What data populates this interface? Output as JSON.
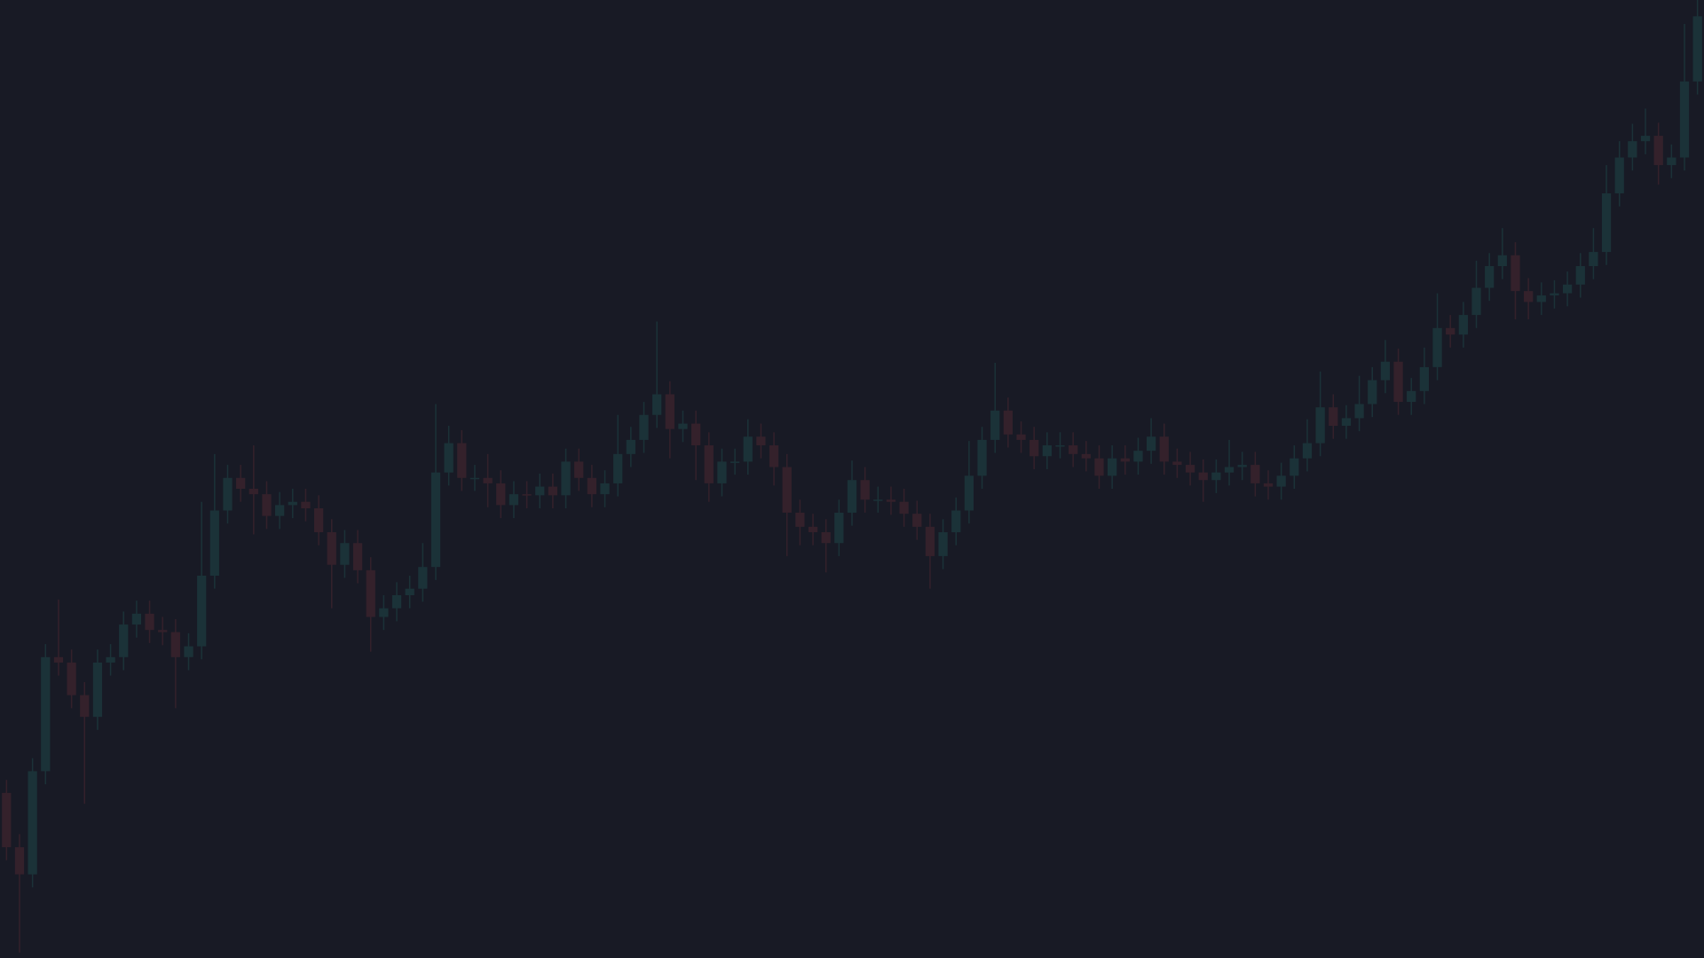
{
  "chart_data": {
    "type": "candlestick",
    "background": "#181a25",
    "up_color": "#1b3238",
    "down_color": "#34212b",
    "ylim": [
      0,
      882
    ],
    "open": [
      152,
      102,
      77,
      172,
      277,
      272,
      242,
      222,
      272,
      277,
      307,
      317,
      302,
      300,
      277,
      287,
      352,
      412,
      442,
      432,
      427,
      407,
      417,
      420,
      414,
      392,
      362,
      382,
      357,
      314,
      322,
      334,
      340,
      360,
      447,
      474,
      442,
      442,
      437,
      417,
      427,
      426,
      434,
      426,
      457,
      442,
      427,
      437,
      464,
      477,
      500,
      519,
      487,
      492,
      472,
      437,
      457,
      457,
      480,
      472,
      452,
      410,
      397,
      392,
      382,
      410,
      440,
      422,
      422,
      420,
      409,
      397,
      370,
      392,
      412,
      444,
      477,
      504,
      482,
      477,
      462,
      472,
      472,
      464,
      460,
      444,
      460,
      457,
      467,
      480,
      457,
      454,
      447,
      440,
      447,
      452,
      454,
      437,
      434,
      444,
      460,
      474,
      507,
      490,
      497,
      510,
      532,
      549,
      512,
      522,
      544,
      580,
      574,
      592,
      617,
      637,
      647,
      614,
      604,
      610,
      612,
      620,
      637,
      650,
      704,
      737,
      752,
      757,
      730,
      737,
      807
    ],
    "high": [
      164,
      114,
      184,
      289,
      330,
      284,
      254,
      284,
      289,
      319,
      329,
      329,
      314,
      312,
      299,
      420,
      464,
      454,
      454,
      472,
      439,
      429,
      432,
      432,
      426,
      404,
      394,
      394,
      369,
      334,
      346,
      352,
      382,
      510,
      490,
      486,
      454,
      464,
      449,
      439,
      439,
      446,
      446,
      469,
      469,
      454,
      449,
      500,
      489,
      512,
      586,
      531,
      504,
      504,
      484,
      469,
      469,
      496,
      492,
      484,
      464,
      422,
      409,
      404,
      422,
      458,
      452,
      434,
      434,
      432,
      421,
      409,
      404,
      424,
      476,
      489,
      548,
      516,
      494,
      489,
      484,
      484,
      484,
      476,
      472,
      472,
      472,
      479,
      497,
      492,
      469,
      466,
      459,
      459,
      477,
      466,
      466,
      449,
      456,
      472,
      496,
      540,
      519,
      509,
      536,
      544,
      569,
      561,
      534,
      562,
      612,
      592,
      604,
      642,
      649,
      672,
      659,
      626,
      622,
      624,
      632,
      649,
      672,
      730,
      752,
      768,
      782,
      769,
      749,
      860,
      882
    ],
    "low": [
      90,
      5,
      65,
      160,
      260,
      230,
      142,
      210,
      260,
      265,
      295,
      290,
      288,
      230,
      265,
      275,
      340,
      400,
      420,
      390,
      395,
      395,
      405,
      402,
      380,
      322,
      350,
      345,
      282,
      302,
      310,
      322,
      328,
      348,
      435,
      430,
      430,
      415,
      405,
      405,
      414,
      414,
      414,
      414,
      430,
      415,
      415,
      425,
      452,
      465,
      488,
      460,
      475,
      440,
      420,
      425,
      445,
      445,
      460,
      435,
      370,
      380,
      380,
      355,
      370,
      398,
      410,
      410,
      408,
      397,
      385,
      340,
      358,
      380,
      400,
      432,
      465,
      470,
      465,
      450,
      450,
      460,
      452,
      448,
      432,
      432,
      445,
      445,
      455,
      445,
      442,
      435,
      420,
      428,
      435,
      440,
      425,
      422,
      422,
      432,
      448,
      462,
      478,
      478,
      485,
      498,
      520,
      500,
      500,
      510,
      532,
      562,
      562,
      580,
      605,
      625,
      588,
      588,
      592,
      598,
      600,
      608,
      625,
      638,
      692,
      725,
      740,
      712,
      718,
      725,
      795
    ],
    "close": [
      102,
      77,
      172,
      277,
      272,
      242,
      222,
      272,
      277,
      307,
      317,
      302,
      300,
      277,
      287,
      352,
      412,
      442,
      432,
      427,
      407,
      417,
      420,
      414,
      392,
      362,
      382,
      357,
      314,
      322,
      334,
      340,
      360,
      447,
      474,
      442,
      442,
      437,
      417,
      427,
      426,
      434,
      426,
      457,
      442,
      427,
      437,
      464,
      477,
      500,
      519,
      487,
      492,
      472,
      437,
      457,
      457,
      480,
      472,
      452,
      410,
      397,
      392,
      382,
      410,
      440,
      422,
      422,
      420,
      409,
      397,
      370,
      392,
      412,
      444,
      477,
      504,
      482,
      477,
      462,
      472,
      472,
      464,
      460,
      444,
      460,
      457,
      467,
      480,
      457,
      454,
      447,
      440,
      447,
      452,
      454,
      437,
      434,
      444,
      460,
      474,
      507,
      490,
      497,
      510,
      532,
      549,
      512,
      522,
      544,
      580,
      574,
      592,
      617,
      637,
      647,
      614,
      604,
      610,
      612,
      620,
      637,
      650,
      704,
      737,
      752,
      757,
      730,
      737,
      807,
      867
    ]
  }
}
